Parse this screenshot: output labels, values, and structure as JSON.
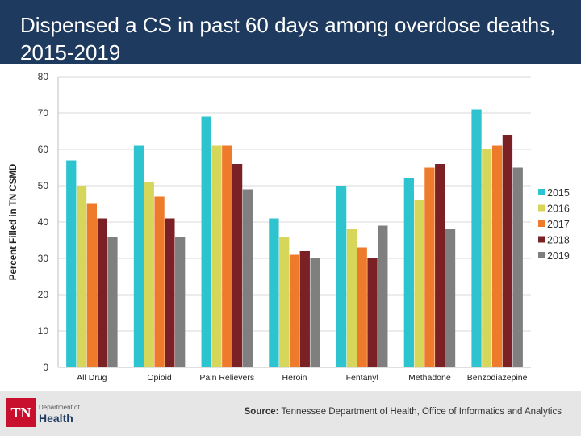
{
  "header": {
    "title": "Dispensed a CS in past 60 days among overdose deaths, 2015-2019"
  },
  "footer": {
    "logo_mark": "TN",
    "logo_small": "Department of",
    "logo_big": "Health",
    "source_label": "Source:",
    "source_text": "Tennessee Department of Health, Office of Informatics and Analytics"
  },
  "chart_data": {
    "type": "bar",
    "title": "Dispensed a CS in past 60 days among overdose deaths, 2015-2019",
    "xlabel": "",
    "ylabel": "Percent Filled in TN CSMD",
    "ylim": [
      0,
      80
    ],
    "yticks": [
      0,
      10,
      20,
      30,
      40,
      50,
      60,
      70,
      80
    ],
    "grid": true,
    "legend_position": "right",
    "categories": [
      "All Drug",
      "Opioid",
      "Pain Relievers",
      "Heroin",
      "Fentanyl",
      "Methadone",
      "Benzodiazepine"
    ],
    "series": [
      {
        "name": "2015",
        "color": "#2ec4cf",
        "values": [
          57,
          61,
          69,
          41,
          50,
          52,
          71
        ]
      },
      {
        "name": "2016",
        "color": "#d6d65a",
        "values": [
          50,
          51,
          61,
          36,
          38,
          46,
          60
        ]
      },
      {
        "name": "2017",
        "color": "#ee7b2c",
        "values": [
          45,
          47,
          61,
          31,
          33,
          55,
          61
        ]
      },
      {
        "name": "2018",
        "color": "#7b2025",
        "values": [
          41,
          41,
          56,
          32,
          30,
          56,
          64
        ]
      },
      {
        "name": "2019",
        "color": "#7f7f7f",
        "values": [
          36,
          36,
          49,
          30,
          39,
          38,
          55
        ]
      }
    ]
  }
}
